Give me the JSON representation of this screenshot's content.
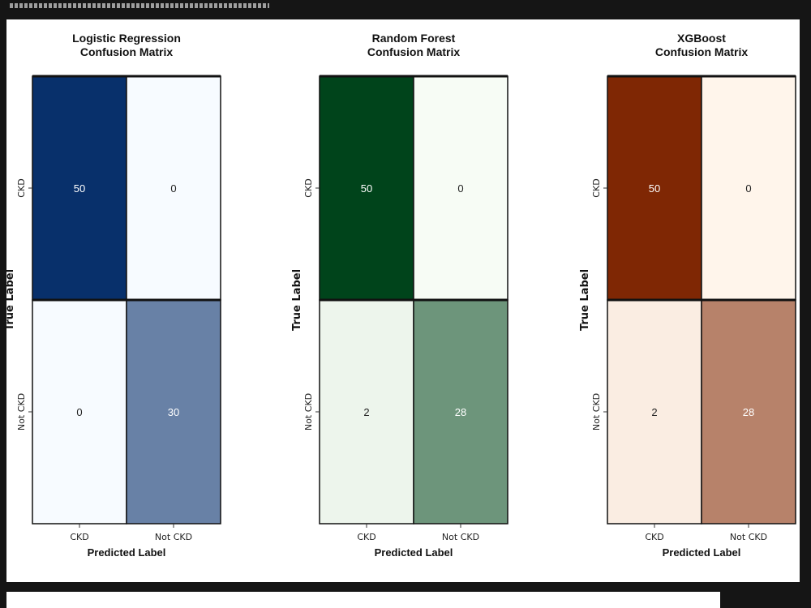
{
  "chart_data": [
    {
      "type": "heatmap",
      "title": [
        "Logistic Regression",
        "Confusion Matrix"
      ],
      "xlabel": "Predicted Label",
      "ylabel": "True Label",
      "x_categories": [
        "CKD",
        "Not CKD"
      ],
      "y_categories": [
        "CKD",
        "Not CKD"
      ],
      "values": [
        [
          50,
          0
        ],
        [
          0,
          30
        ]
      ],
      "colormap": "Blues",
      "colors": {
        "low": "#f7fbff",
        "high": "#08306b",
        "text_light": "#ffffff",
        "text_dark": "#222222"
      }
    },
    {
      "type": "heatmap",
      "title": [
        "Random Forest",
        "Confusion Matrix"
      ],
      "xlabel": "Predicted Label",
      "ylabel": "True Label",
      "x_categories": [
        "CKD",
        "Not CKD"
      ],
      "y_categories": [
        "CKD",
        "Not CKD"
      ],
      "values": [
        [
          50,
          0
        ],
        [
          2,
          28
        ]
      ],
      "colormap": "Greens",
      "colors": {
        "low": "#f7fcf5",
        "high": "#00441b",
        "text_light": "#ffffff",
        "text_dark": "#222222"
      }
    },
    {
      "type": "heatmap",
      "title": [
        "XGBoost",
        "Confusion Matrix"
      ],
      "xlabel": "Predicted Label",
      "ylabel": "True Label",
      "x_categories": [
        "CKD",
        "Not CKD"
      ],
      "y_categories": [
        "CKD",
        "Not CKD"
      ],
      "values": [
        [
          50,
          0
        ],
        [
          2,
          28
        ]
      ],
      "colormap": "Oranges",
      "colors": {
        "low": "#fff5eb",
        "high": "#7f2704",
        "text_light": "#ffffff",
        "text_dark": "#222222"
      }
    }
  ]
}
